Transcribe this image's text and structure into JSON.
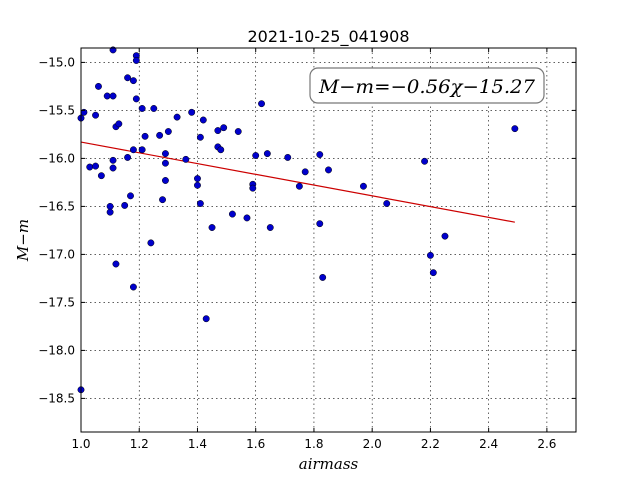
{
  "chart_data": {
    "type": "scatter",
    "title": "2021-10-25_041908",
    "xlabel": "airmass",
    "ylabel": "M−m",
    "xlim": [
      1.0,
      2.7
    ],
    "ylim": [
      -18.85,
      -14.85
    ],
    "y_inverted": true,
    "grid": true,
    "x_ticks": [
      1.0,
      1.2,
      1.4,
      1.6,
      1.8,
      2.0,
      2.2,
      2.4,
      2.6
    ],
    "x_tick_labels": [
      "1.0",
      "1.2",
      "1.4",
      "1.6",
      "1.8",
      "2.0",
      "2.2",
      "2.4",
      "2.6"
    ],
    "y_ticks": [
      -15.0,
      -15.5,
      -16.0,
      -16.5,
      -17.0,
      -17.5,
      -18.0,
      -18.5
    ],
    "y_tick_labels": [
      "−15.0",
      "−15.5",
      "−16.0",
      "−16.5",
      "−17.0",
      "−17.5",
      "−18.0",
      "−18.5"
    ],
    "annotation": "M−m=−0.56χ−15.27",
    "annotation_placement": "top-right",
    "point_color": "#0000cc",
    "fit_color": "#cc0000",
    "fit_line": {
      "slope": -0.56,
      "intercept": -15.27,
      "x_range": [
        1.0,
        2.49
      ]
    },
    "points": [
      [
        1.0,
        -15.58
      ],
      [
        1.0,
        -18.41
      ],
      [
        1.01,
        -15.52
      ],
      [
        1.03,
        -16.09
      ],
      [
        1.05,
        -16.08
      ],
      [
        1.05,
        -15.55
      ],
      [
        1.06,
        -15.25
      ],
      [
        1.07,
        -16.18
      ],
      [
        1.09,
        -15.35
      ],
      [
        1.1,
        -16.5
      ],
      [
        1.1,
        -16.56
      ],
      [
        1.11,
        -14.87
      ],
      [
        1.11,
        -15.35
      ],
      [
        1.11,
        -16.02
      ],
      [
        1.11,
        -16.1
      ],
      [
        1.12,
        -15.67
      ],
      [
        1.12,
        -17.1
      ],
      [
        1.13,
        -15.64
      ],
      [
        1.15,
        -16.49
      ],
      [
        1.16,
        -15.16
      ],
      [
        1.16,
        -15.99
      ],
      [
        1.17,
        -16.39
      ],
      [
        1.18,
        -15.19
      ],
      [
        1.18,
        -15.91
      ],
      [
        1.18,
        -17.34
      ],
      [
        1.19,
        -14.93
      ],
      [
        1.19,
        -14.98
      ],
      [
        1.19,
        -15.38
      ],
      [
        1.21,
        -15.48
      ],
      [
        1.21,
        -15.91
      ],
      [
        1.22,
        -15.77
      ],
      [
        1.24,
        -16.88
      ],
      [
        1.25,
        -15.48
      ],
      [
        1.27,
        -15.76
      ],
      [
        1.28,
        -16.43
      ],
      [
        1.29,
        -15.95
      ],
      [
        1.29,
        -16.23
      ],
      [
        1.29,
        -16.05
      ],
      [
        1.3,
        -15.72
      ],
      [
        1.33,
        -15.57
      ],
      [
        1.36,
        -16.01
      ],
      [
        1.38,
        -15.52
      ],
      [
        1.4,
        -16.21
      ],
      [
        1.4,
        -16.28
      ],
      [
        1.41,
        -15.78
      ],
      [
        1.41,
        -16.47
      ],
      [
        1.42,
        -15.6
      ],
      [
        1.43,
        -17.67
      ],
      [
        1.45,
        -16.72
      ],
      [
        1.47,
        -15.88
      ],
      [
        1.47,
        -15.71
      ],
      [
        1.48,
        -15.91
      ],
      [
        1.49,
        -15.68
      ],
      [
        1.52,
        -16.58
      ],
      [
        1.54,
        -15.72
      ],
      [
        1.57,
        -16.62
      ],
      [
        1.59,
        -16.27
      ],
      [
        1.59,
        -16.31
      ],
      [
        1.6,
        -15.97
      ],
      [
        1.62,
        -15.43
      ],
      [
        1.64,
        -15.95
      ],
      [
        1.65,
        -16.72
      ],
      [
        1.71,
        -15.99
      ],
      [
        1.75,
        -16.29
      ],
      [
        1.77,
        -16.14
      ],
      [
        1.82,
        -16.68
      ],
      [
        1.82,
        -15.96
      ],
      [
        1.83,
        -17.24
      ],
      [
        1.85,
        -16.12
      ],
      [
        1.97,
        -16.29
      ],
      [
        2.05,
        -16.47
      ],
      [
        2.18,
        -16.03
      ],
      [
        2.2,
        -17.01
      ],
      [
        2.21,
        -17.19
      ],
      [
        2.25,
        -16.81
      ],
      [
        2.49,
        -15.69
      ]
    ]
  }
}
